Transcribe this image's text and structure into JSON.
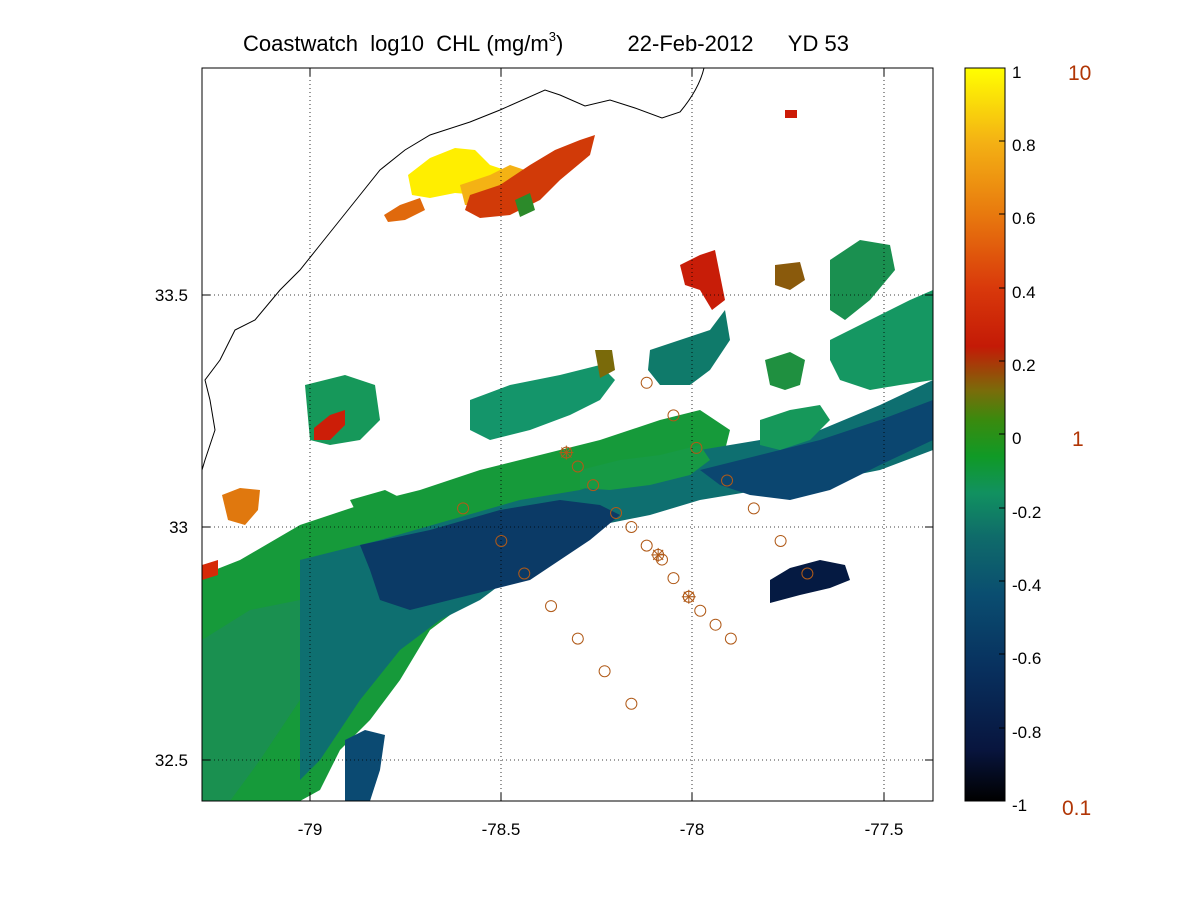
{
  "title": {
    "product": "Coastwatch",
    "variable": "log10",
    "quantity": "CHL",
    "units_prefix": "(mg/m",
    "units_sup": "3",
    "units_suffix": ")",
    "date": "22-Feb-2012",
    "yearday": "YD 53"
  },
  "map": {
    "lon_range": [
      -79.28,
      -77.4
    ],
    "lat_range": [
      32.42,
      33.98
    ],
    "lon_ticks": [
      "-79",
      "-78.5",
      "-78",
      "-77.5"
    ],
    "lat_ticks": [
      "33.5",
      "33",
      "32.5"
    ],
    "grid": true
  },
  "colorbar": {
    "range": [
      -1,
      1
    ],
    "ticks": [
      "1",
      "0.8",
      "0.6",
      "0.4",
      "0.2",
      "0",
      "-0.2",
      "-0.4",
      "-0.6",
      "-0.8",
      "-1"
    ],
    "linear_labels": [
      "10",
      "1",
      "0.1"
    ],
    "linear_label_color": "#b13606",
    "colormap": [
      "#000000",
      "#08153e",
      "#08305e",
      "#0a4d70",
      "#0f6b6a",
      "#119160",
      "#109a26",
      "#3a8a0e",
      "#7a6c0a",
      "#c41a06",
      "#d9390b",
      "#e8790e",
      "#f4b214",
      "#ffff00"
    ]
  },
  "stations": {
    "marker_color": "#b05a18",
    "circles": [
      {
        "lon": -78.6,
        "lat": 33.04
      },
      {
        "lon": -78.5,
        "lat": 32.97
      },
      {
        "lon": -78.44,
        "lat": 32.9
      },
      {
        "lon": -78.37,
        "lat": 32.83
      },
      {
        "lon": -78.3,
        "lat": 32.76
      },
      {
        "lon": -78.23,
        "lat": 32.69
      },
      {
        "lon": -78.16,
        "lat": 32.62
      },
      {
        "lon": -78.3,
        "lat": 33.13
      },
      {
        "lon": -78.26,
        "lat": 33.09
      },
      {
        "lon": -78.2,
        "lat": 33.03
      },
      {
        "lon": -78.16,
        "lat": 33.0
      },
      {
        "lon": -78.12,
        "lat": 32.96
      },
      {
        "lon": -78.08,
        "lat": 32.93
      },
      {
        "lon": -78.05,
        "lat": 32.89
      },
      {
        "lon": -78.01,
        "lat": 32.85
      },
      {
        "lon": -77.98,
        "lat": 32.82
      },
      {
        "lon": -77.94,
        "lat": 32.79
      },
      {
        "lon": -77.9,
        "lat": 32.76
      },
      {
        "lon": -78.12,
        "lat": 33.31
      },
      {
        "lon": -78.05,
        "lat": 33.24
      },
      {
        "lon": -77.99,
        "lat": 33.17
      },
      {
        "lon": -77.91,
        "lat": 33.1
      },
      {
        "lon": -77.84,
        "lat": 33.04
      },
      {
        "lon": -77.77,
        "lat": 32.97
      },
      {
        "lon": -77.7,
        "lat": 32.9
      }
    ],
    "stars": [
      {
        "lon": -78.33,
        "lat": 33.16
      },
      {
        "lon": -78.09,
        "lat": 32.94
      },
      {
        "lon": -78.01,
        "lat": 32.85
      }
    ]
  }
}
